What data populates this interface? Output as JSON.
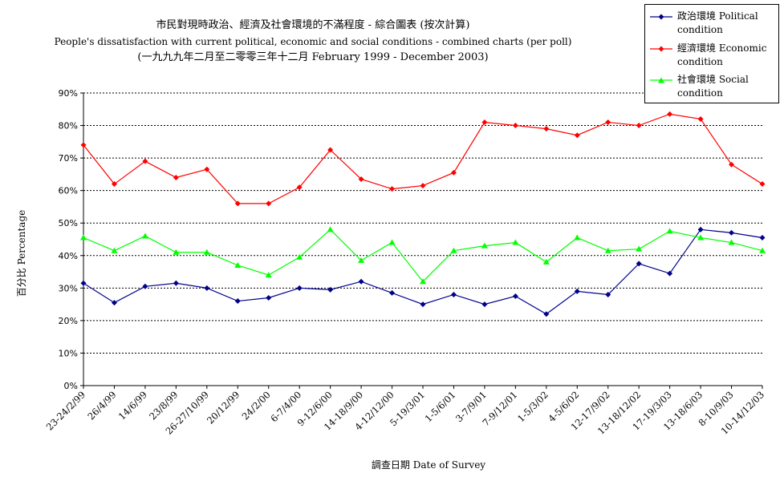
{
  "chart_data": {
    "type": "line",
    "title": "市民對現時政治、經濟及社會環境的不滿程度 - 綜合圖表 (按次計算)",
    "subtitle": "People's dissatisfaction with current political, economic and social conditions - combined charts  (per poll)",
    "period": "(一九九九年二月至二零零三年十二月 February 1999 - December 2003)",
    "xlabel": "調查日期 Date of Survey",
    "ylabel": "百分比 Percentage",
    "ylim": [
      0,
      90
    ],
    "yticks": [
      "0%",
      "10%",
      "20%",
      "30%",
      "40%",
      "50%",
      "60%",
      "70%",
      "80%",
      "90%"
    ],
    "grid": "horizontal dotted",
    "legend_position": "top-right",
    "categories": [
      "23-24/2/99",
      "26/4/99",
      "14/6/99",
      "23/8/99",
      "26-27/10/99",
      "20/12/99",
      "24/2/00",
      "6-7/4/00",
      "9-12/6/00",
      "14-18/9/00",
      "4-12/12/00",
      "5-19/3/01",
      "1-5/6/01",
      "3-7/9/01",
      "7-9/12/01",
      "1-5/3/02",
      "4-5/6/02",
      "12-17/9/02",
      "13-18/12/02",
      "17-19/3/03",
      "13-18/6/03",
      "8-10/9/03",
      "10-14/12/03"
    ],
    "series": [
      {
        "name": "政治環境 Political condition",
        "color": "#00008B",
        "marker": "diamond",
        "values": [
          31.5,
          25.5,
          30.5,
          31.5,
          30,
          26,
          27,
          30,
          29.5,
          32,
          28.5,
          25,
          28,
          25,
          27.5,
          22,
          29,
          28,
          37.5,
          34.5,
          48,
          47,
          45.5
        ]
      },
      {
        "name": "經濟環境 Economic condition",
        "color": "#FF0000",
        "marker": "diamond",
        "values": [
          74,
          62,
          69,
          64,
          66.5,
          56,
          56,
          61,
          72.5,
          63.5,
          60.5,
          61.5,
          65.5,
          81,
          80,
          79,
          77,
          81,
          80,
          83.5,
          82,
          68,
          62
        ]
      },
      {
        "name": "社會環境 Social condition",
        "color": "#00FF00",
        "marker": "triangle",
        "values": [
          45.5,
          41.5,
          46,
          41,
          41,
          37,
          34,
          39.5,
          48,
          38.5,
          44,
          32,
          41.5,
          43,
          44,
          38,
          45.5,
          41.5,
          42,
          47.5,
          45.5,
          44,
          41.5
        ]
      }
    ]
  }
}
